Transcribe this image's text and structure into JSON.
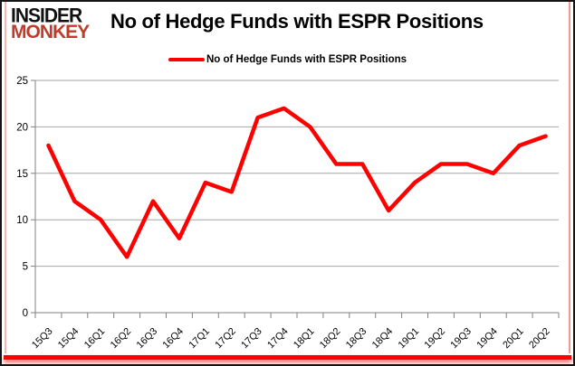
{
  "logo": {
    "line1": "INSIDER",
    "line2": "MONKEY",
    "line2_color": "#c13b2a"
  },
  "header": {
    "title": "No of Hedge Funds with ESPR Positions"
  },
  "legend": {
    "label": "No of Hedge Funds with ESPR Positions",
    "swatch_color": "#ff0000"
  },
  "chart_data": {
    "type": "line",
    "title": "No of Hedge Funds with ESPR Positions",
    "categories": [
      "15Q3",
      "15Q4",
      "16Q1",
      "16Q2",
      "16Q3",
      "16Q4",
      "17Q1",
      "17Q2",
      "17Q3",
      "17Q4",
      "18Q1",
      "18Q2",
      "18Q3",
      "18Q4",
      "19Q1",
      "19Q2",
      "19Q3",
      "19Q4",
      "20Q1",
      "20Q2"
    ],
    "series": [
      {
        "name": "No of Hedge Funds with ESPR Positions",
        "values": [
          18,
          12,
          10,
          6,
          12,
          8,
          14,
          13,
          21,
          22,
          20,
          16,
          16,
          11,
          14,
          16,
          16,
          15,
          18,
          19
        ]
      }
    ],
    "xlabel": "",
    "ylabel": "",
    "ylim": [
      0,
      25
    ],
    "yticks": [
      0,
      5,
      10,
      15,
      20,
      25
    ],
    "grid": true,
    "legend_position": "top",
    "line_color": "#ff0000",
    "grid_color": "#a6a6a6",
    "axis_color": "#808080"
  }
}
